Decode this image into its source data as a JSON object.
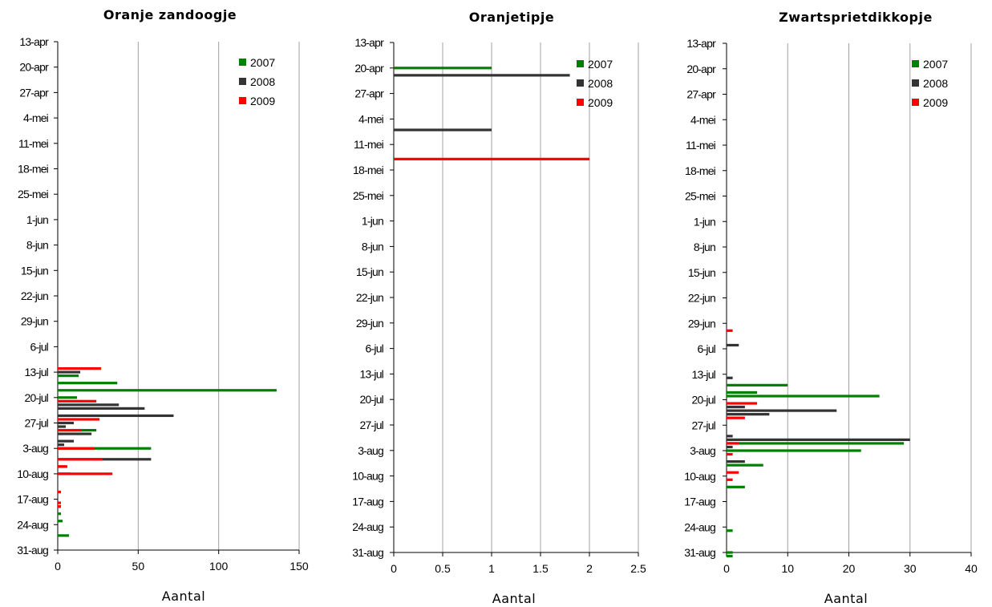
{
  "colors": {
    "2007": "#008000",
    "2008": "#333333",
    "2009": "#ff0000",
    "grid": "#a0a0a0",
    "axis": "#000000"
  },
  "chart_data": [
    {
      "type": "bar",
      "orientation": "horizontal",
      "title": "Oranje zandoogje",
      "xlabel": "Aantal",
      "ylabel": "",
      "xlim": [
        0,
        150
      ],
      "xticks": [
        "0",
        "50",
        "100",
        "150"
      ],
      "grid": true,
      "legend_position": "top-right",
      "categories": [
        "13-apr",
        "20-apr",
        "27-apr",
        "4-mei",
        "11-mei",
        "18-mei",
        "25-mei",
        "1-jun",
        "8-jun",
        "15-jun",
        "22-jun",
        "29-jun",
        "6-jul",
        "13-jul",
        "20-jul",
        "27-jul",
        "3-aug",
        "10-aug",
        "17-aug",
        "24-aug",
        "31-aug"
      ],
      "series": [
        {
          "name": "2007",
          "points": [
            {
              "date": "2009-07-14",
              "value": 13
            },
            {
              "date": "2009-07-16",
              "value": 37
            },
            {
              "date": "2009-07-18",
              "value": 136
            },
            {
              "date": "2009-07-20",
              "value": 12
            },
            {
              "date": "2009-07-29",
              "value": 24
            },
            {
              "date": "2009-08-03",
              "value": 58
            },
            {
              "date": "2009-08-10",
              "value": 8
            },
            {
              "date": "2009-08-19",
              "value": 2
            },
            {
              "date": "2009-08-21",
              "value": 2
            },
            {
              "date": "2009-08-23",
              "value": 3
            },
            {
              "date": "2009-08-27",
              "value": 7
            }
          ]
        },
        {
          "name": "2008",
          "points": [
            {
              "date": "2009-07-13",
              "value": 14
            },
            {
              "date": "2009-07-22",
              "value": 38
            },
            {
              "date": "2009-07-23",
              "value": 54
            },
            {
              "date": "2009-07-25",
              "value": 72
            },
            {
              "date": "2009-07-27",
              "value": 10
            },
            {
              "date": "2009-07-28",
              "value": 5
            },
            {
              "date": "2009-07-30",
              "value": 21
            },
            {
              "date": "2009-08-01",
              "value": 10
            },
            {
              "date": "2009-08-02",
              "value": 4
            },
            {
              "date": "2009-08-06",
              "value": 58
            },
            {
              "date": "2009-08-08",
              "value": 5
            }
          ]
        },
        {
          "name": "2009",
          "points": [
            {
              "date": "2009-07-12",
              "value": 27
            },
            {
              "date": "2009-07-21",
              "value": 24
            },
            {
              "date": "2009-07-26",
              "value": 26
            },
            {
              "date": "2009-07-29",
              "value": 15
            },
            {
              "date": "2009-08-03",
              "value": 23
            },
            {
              "date": "2009-08-06",
              "value": 28
            },
            {
              "date": "2009-08-08",
              "value": 6
            },
            {
              "date": "2009-08-10",
              "value": 34
            },
            {
              "date": "2009-08-15",
              "value": 2
            },
            {
              "date": "2009-08-18",
              "value": 2
            },
            {
              "date": "2009-08-19",
              "value": 2
            }
          ]
        }
      ]
    },
    {
      "type": "bar",
      "orientation": "horizontal",
      "title": "Oranjetipje",
      "xlabel": "Aantal",
      "ylabel": "",
      "xlim": [
        0,
        2.5
      ],
      "xticks": [
        "0",
        "0.5",
        "1",
        "1.5",
        "2",
        "2.5"
      ],
      "grid": true,
      "legend_position": "top-right",
      "categories": [
        "13-apr",
        "20-apr",
        "27-apr",
        "4-mei",
        "11-mei",
        "18-mei",
        "25-mei",
        "1-jun",
        "8-jun",
        "15-jun",
        "22-jun",
        "29-jun",
        "6-jul",
        "13-jul",
        "20-jul",
        "27-jul",
        "3-aug",
        "10-aug",
        "17-aug",
        "24-aug",
        "31-aug"
      ],
      "series": [
        {
          "name": "2007",
          "points": [
            {
              "date": "2009-04-20",
              "value": 1
            }
          ]
        },
        {
          "name": "2008",
          "points": [
            {
              "date": "2009-04-22",
              "value": 1.8
            },
            {
              "date": "2009-05-07",
              "value": 1
            }
          ]
        },
        {
          "name": "2009",
          "points": [
            {
              "date": "2009-05-15",
              "value": 2
            }
          ]
        }
      ]
    },
    {
      "type": "bar",
      "orientation": "horizontal",
      "title": "Zwartsprietdikkopje",
      "xlabel": "Aantal",
      "ylabel": "",
      "xlim": [
        0,
        40
      ],
      "xticks": [
        "0",
        "10",
        "20",
        "30",
        "40"
      ],
      "grid": true,
      "legend_position": "top-right",
      "categories": [
        "13-apr",
        "20-apr",
        "27-apr",
        "4-mei",
        "11-mei",
        "18-mei",
        "25-mei",
        "1-jun",
        "8-jun",
        "15-jun",
        "22-jun",
        "29-jun",
        "6-jul",
        "13-jul",
        "20-jul",
        "27-jul",
        "3-aug",
        "10-aug",
        "17-aug",
        "24-aug",
        "31-aug"
      ],
      "series": [
        {
          "name": "2007",
          "points": [
            {
              "date": "2009-07-16",
              "value": 10
            },
            {
              "date": "2009-07-18",
              "value": 5
            },
            {
              "date": "2009-07-19",
              "value": 25
            },
            {
              "date": "2009-08-01",
              "value": 29
            },
            {
              "date": "2009-08-03",
              "value": 22
            },
            {
              "date": "2009-08-07",
              "value": 6
            },
            {
              "date": "2009-08-13",
              "value": 3
            },
            {
              "date": "2009-08-25",
              "value": 1
            },
            {
              "date": "2009-08-31",
              "value": 1
            },
            {
              "date": "2009-09-01",
              "value": 1
            }
          ]
        },
        {
          "name": "2008",
          "points": [
            {
              "date": "2009-07-05",
              "value": 2
            },
            {
              "date": "2009-07-14",
              "value": 1
            },
            {
              "date": "2009-07-22",
              "value": 3
            },
            {
              "date": "2009-07-23",
              "value": 18
            },
            {
              "date": "2009-07-24",
              "value": 7
            },
            {
              "date": "2009-07-30",
              "value": 1
            },
            {
              "date": "2009-07-31",
              "value": 30
            },
            {
              "date": "2009-08-02",
              "value": 1
            },
            {
              "date": "2009-08-06",
              "value": 3
            }
          ]
        },
        {
          "name": "2009",
          "points": [
            {
              "date": "2009-07-01",
              "value": 1
            },
            {
              "date": "2009-07-21",
              "value": 5
            },
            {
              "date": "2009-07-25",
              "value": 3
            },
            {
              "date": "2009-08-01",
              "value": 2
            },
            {
              "date": "2009-08-04",
              "value": 1
            },
            {
              "date": "2009-08-09",
              "value": 2
            },
            {
              "date": "2009-08-11",
              "value": 1
            }
          ]
        }
      ]
    }
  ]
}
